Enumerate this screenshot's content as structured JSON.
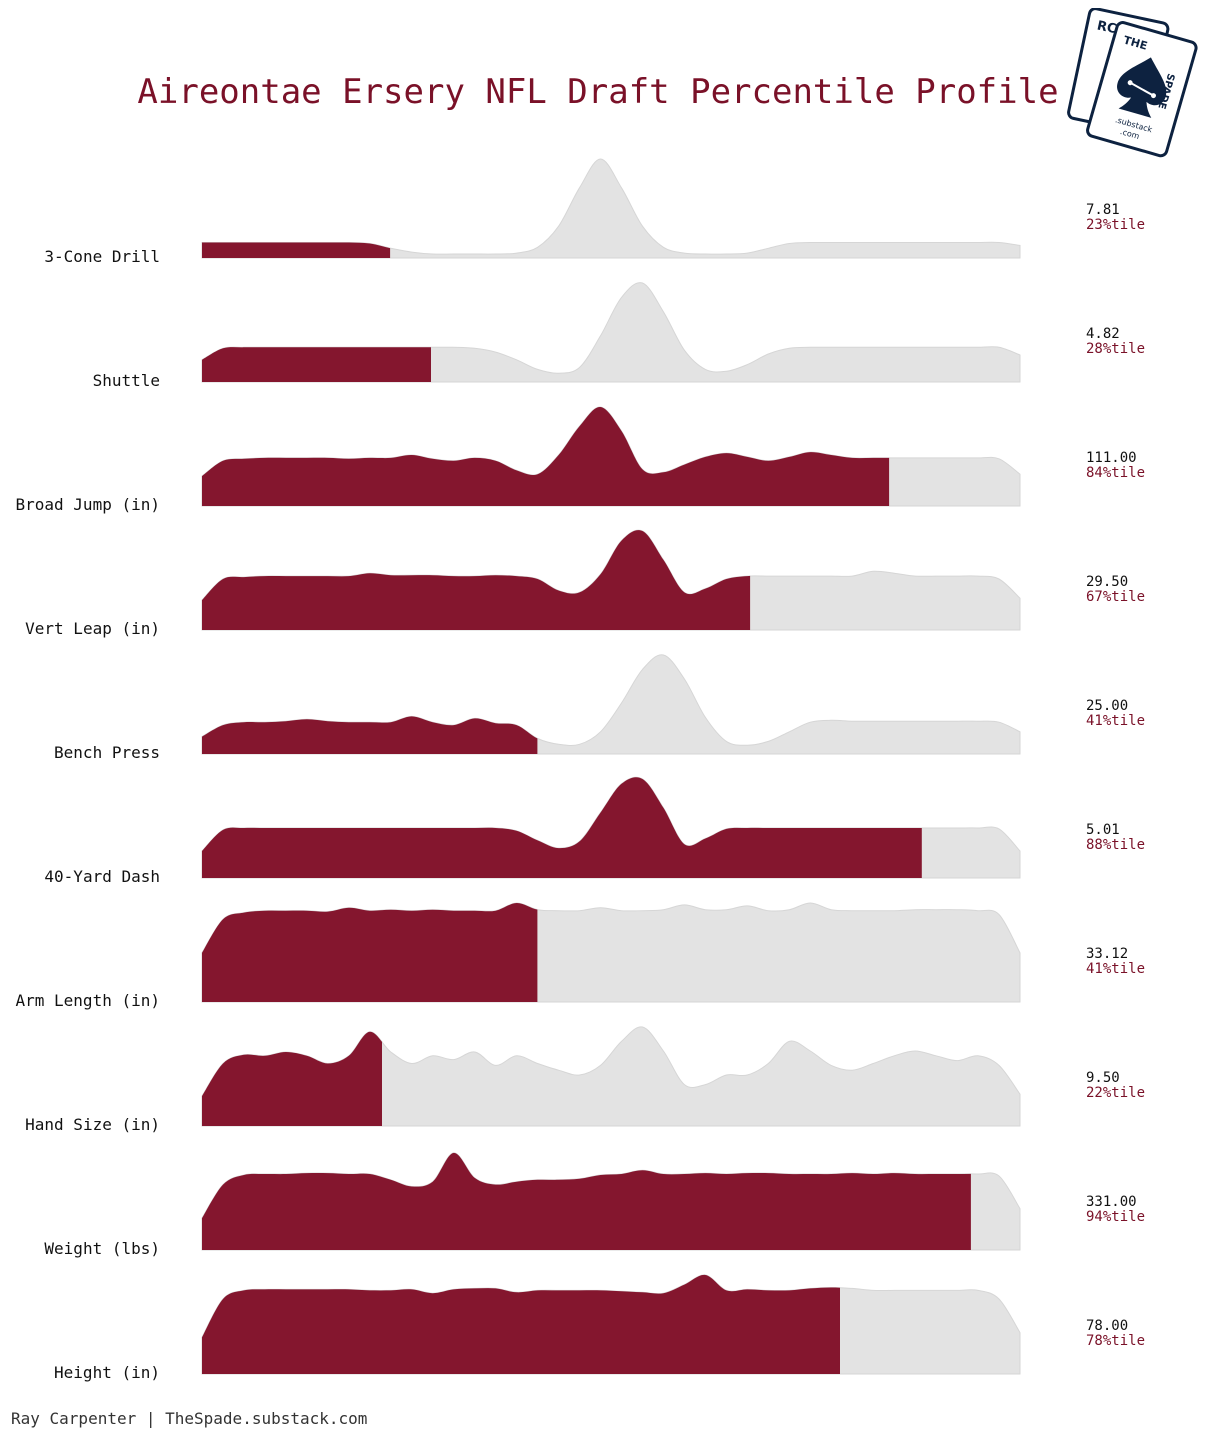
{
  "chart_data": {
    "type": "area",
    "title": "Aireontae Ersery NFL Draft Percentile Profile",
    "colors": {
      "highlight": "#84162e",
      "distribution": "#e3e3e3",
      "title": "#7a1128"
    },
    "metrics": [
      {
        "label": "3-Cone Drill",
        "value": "7.81",
        "percentile_label": "23%tile",
        "percentile": 23,
        "density": [
          0.13,
          0.13,
          0.13,
          0.13,
          0.13,
          0.13,
          0.13,
          0.13,
          0.12,
          0.07,
          0.03,
          0.01,
          0.01,
          0.01,
          0.01,
          0.02,
          0.08,
          0.3,
          0.7,
          1.0,
          0.7,
          0.3,
          0.08,
          0.02,
          0.01,
          0.01,
          0.02,
          0.07,
          0.12,
          0.13,
          0.13,
          0.13,
          0.13,
          0.13,
          0.13,
          0.13,
          0.13,
          0.13,
          0.13,
          0.1
        ]
      },
      {
        "label": "Shuttle",
        "value": "4.82",
        "percentile_label": "28%tile",
        "percentile": 28,
        "density": [
          0.2,
          0.32,
          0.33,
          0.33,
          0.33,
          0.33,
          0.33,
          0.33,
          0.33,
          0.33,
          0.33,
          0.33,
          0.33,
          0.32,
          0.28,
          0.2,
          0.1,
          0.06,
          0.12,
          0.45,
          0.85,
          1.0,
          0.7,
          0.3,
          0.1,
          0.08,
          0.15,
          0.26,
          0.32,
          0.33,
          0.33,
          0.33,
          0.33,
          0.33,
          0.33,
          0.33,
          0.33,
          0.33,
          0.33,
          0.25
        ]
      },
      {
        "label": "Broad Jump (in)",
        "value": "111.00",
        "percentile_label": "84%tile",
        "percentile": 84,
        "density": [
          0.28,
          0.44,
          0.46,
          0.47,
          0.47,
          0.47,
          0.47,
          0.46,
          0.47,
          0.47,
          0.5,
          0.46,
          0.44,
          0.47,
          0.44,
          0.34,
          0.3,
          0.5,
          0.8,
          1.0,
          0.75,
          0.35,
          0.32,
          0.4,
          0.48,
          0.52,
          0.48,
          0.44,
          0.48,
          0.53,
          0.5,
          0.47,
          0.47,
          0.47,
          0.47,
          0.47,
          0.47,
          0.47,
          0.46,
          0.3
        ]
      },
      {
        "label": "Vert Leap (in)",
        "value": "29.50",
        "percentile_label": "67%tile",
        "percentile": 67,
        "density": [
          0.28,
          0.5,
          0.52,
          0.53,
          0.53,
          0.53,
          0.53,
          0.53,
          0.56,
          0.54,
          0.54,
          0.54,
          0.53,
          0.53,
          0.54,
          0.53,
          0.5,
          0.38,
          0.36,
          0.55,
          0.9,
          1.0,
          0.7,
          0.36,
          0.4,
          0.5,
          0.53,
          0.53,
          0.53,
          0.53,
          0.53,
          0.53,
          0.58,
          0.56,
          0.53,
          0.53,
          0.53,
          0.53,
          0.5,
          0.3
        ]
      },
      {
        "label": "Bench Press",
        "value": "25.00",
        "percentile_label": "41%tile",
        "percentile": 41,
        "density": [
          0.15,
          0.27,
          0.3,
          0.3,
          0.31,
          0.33,
          0.31,
          0.3,
          0.3,
          0.3,
          0.36,
          0.3,
          0.27,
          0.34,
          0.29,
          0.27,
          0.13,
          0.07,
          0.07,
          0.2,
          0.5,
          0.85,
          1.0,
          0.75,
          0.35,
          0.1,
          0.06,
          0.1,
          0.2,
          0.3,
          0.32,
          0.31,
          0.31,
          0.31,
          0.31,
          0.31,
          0.31,
          0.31,
          0.3,
          0.2
        ]
      },
      {
        "label": "40-Yard Dash",
        "value": "5.01",
        "percentile_label": "88%tile",
        "percentile": 88,
        "density": [
          0.25,
          0.47,
          0.49,
          0.49,
          0.49,
          0.49,
          0.49,
          0.49,
          0.49,
          0.49,
          0.49,
          0.49,
          0.49,
          0.49,
          0.49,
          0.46,
          0.36,
          0.28,
          0.35,
          0.65,
          0.95,
          1.0,
          0.7,
          0.32,
          0.38,
          0.48,
          0.49,
          0.49,
          0.49,
          0.49,
          0.49,
          0.49,
          0.49,
          0.49,
          0.49,
          0.49,
          0.49,
          0.49,
          0.48,
          0.25
        ]
      },
      {
        "label": "Arm Length (in)",
        "value": "33.12",
        "percentile_label": "41%tile",
        "percentile": 41,
        "density": [
          0.48,
          0.83,
          0.9,
          0.92,
          0.92,
          0.92,
          0.91,
          0.95,
          0.92,
          0.93,
          0.92,
          0.93,
          0.92,
          0.92,
          0.92,
          1.0,
          0.93,
          0.92,
          0.92,
          0.95,
          0.92,
          0.92,
          0.93,
          0.98,
          0.93,
          0.93,
          0.97,
          0.92,
          0.93,
          1.0,
          0.93,
          0.92,
          0.92,
          0.92,
          0.93,
          0.93,
          0.93,
          0.92,
          0.88,
          0.48
        ]
      },
      {
        "label": "Hand Size (in)",
        "value": "9.50",
        "percentile_label": "22%tile",
        "percentile": 22,
        "density": [
          0.28,
          0.62,
          0.71,
          0.7,
          0.74,
          0.7,
          0.62,
          0.7,
          0.95,
          0.74,
          0.62,
          0.7,
          0.66,
          0.74,
          0.6,
          0.7,
          0.62,
          0.55,
          0.5,
          0.6,
          0.85,
          1.0,
          0.75,
          0.4,
          0.4,
          0.5,
          0.5,
          0.62,
          0.85,
          0.75,
          0.6,
          0.55,
          0.62,
          0.7,
          0.75,
          0.7,
          0.65,
          0.7,
          0.6,
          0.3
        ]
      },
      {
        "label": "Weight (lbs)",
        "value": "331.00",
        "percentile_label": "94%tile",
        "percentile": 94,
        "density": [
          0.3,
          0.65,
          0.75,
          0.76,
          0.76,
          0.77,
          0.77,
          0.76,
          0.76,
          0.7,
          0.63,
          0.68,
          0.98,
          0.72,
          0.65,
          0.68,
          0.7,
          0.7,
          0.71,
          0.75,
          0.76,
          0.8,
          0.76,
          0.76,
          0.77,
          0.76,
          0.77,
          0.77,
          0.76,
          0.76,
          0.76,
          0.77,
          0.76,
          0.77,
          0.76,
          0.76,
          0.76,
          0.76,
          0.74,
          0.4
        ]
      },
      {
        "label": "Height (in)",
        "value": "78.00",
        "percentile_label": "78%tile",
        "percentile": 78,
        "density": [
          0.35,
          0.75,
          0.84,
          0.85,
          0.85,
          0.85,
          0.85,
          0.85,
          0.84,
          0.84,
          0.85,
          0.81,
          0.85,
          0.86,
          0.86,
          0.82,
          0.84,
          0.84,
          0.84,
          0.84,
          0.83,
          0.82,
          0.81,
          0.9,
          1.0,
          0.84,
          0.85,
          0.84,
          0.84,
          0.86,
          0.87,
          0.86,
          0.84,
          0.84,
          0.84,
          0.84,
          0.84,
          0.84,
          0.75,
          0.4
        ]
      }
    ]
  },
  "logo": {
    "name": "the-spade-logo",
    "card_back_letters": "RC",
    "card_front_the": "THE",
    "card_front_spade": "SPADE",
    "card_front_site_1": ".substack",
    "card_front_site_2": ".com"
  },
  "footer": {
    "credit": "Ray Carpenter | TheSpade.substack.com"
  }
}
